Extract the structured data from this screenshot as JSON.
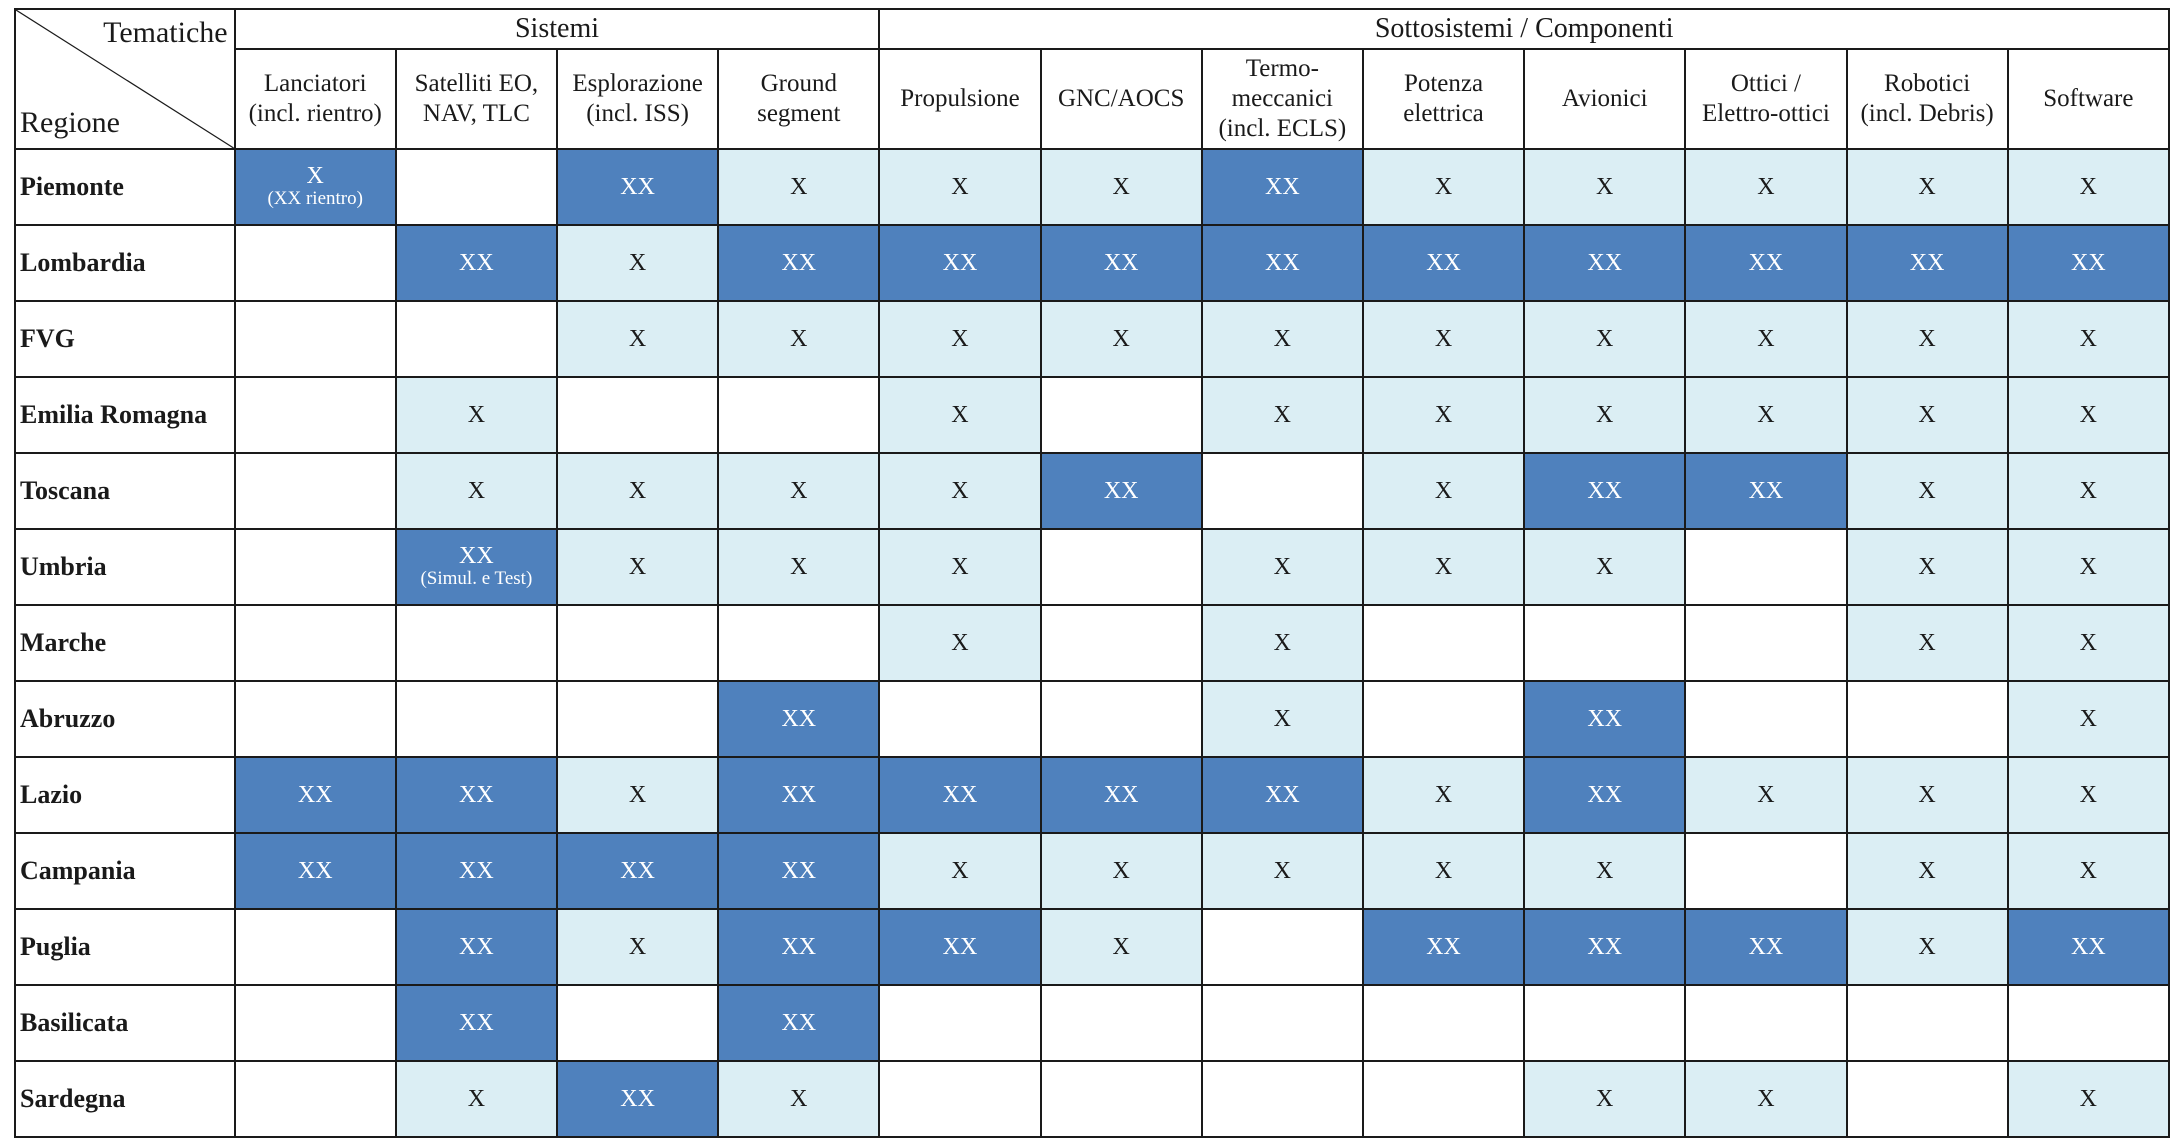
{
  "header": {
    "corner_top": "Tematiche",
    "corner_bottom": "Regione",
    "groups": [
      {
        "label": "Sistemi",
        "span": 4
      },
      {
        "label": "Sottosistemi / Componenti",
        "span": 8
      }
    ],
    "columns": [
      [
        "Lanciatori",
        "(incl. rientro)"
      ],
      [
        "Satelliti EO,",
        "NAV, TLC"
      ],
      [
        "Esplorazione",
        "(incl. ISS)"
      ],
      [
        "Ground",
        "segment"
      ],
      [
        "Propulsione"
      ],
      [
        "GNC/AOCS"
      ],
      [
        "Termo-",
        "meccanici",
        "(incl. ECLS)"
      ],
      [
        "Potenza",
        "elettrica"
      ],
      [
        "Avionici"
      ],
      [
        "Ottici /",
        "Elettro-ottici"
      ],
      [
        "Robotici",
        "(incl. Debris)"
      ],
      [
        "Software"
      ]
    ]
  },
  "colors": {
    "none": "#ffffff",
    "single_x": "#dbeef4",
    "double_x": "#4f81bd"
  },
  "rows": [
    {
      "region": "Piemonte",
      "cells": [
        {
          "text": "X",
          "note": "(XX rientro)",
          "level": 2
        },
        {
          "text": "",
          "level": 0
        },
        {
          "text": "XX",
          "level": 2
        },
        {
          "text": "X",
          "level": 1
        },
        {
          "text": "X",
          "level": 1
        },
        {
          "text": "X",
          "level": 1
        },
        {
          "text": "XX",
          "level": 2
        },
        {
          "text": "X",
          "level": 1
        },
        {
          "text": "X",
          "level": 1
        },
        {
          "text": "X",
          "level": 1
        },
        {
          "text": "X",
          "level": 1
        },
        {
          "text": "X",
          "level": 1
        }
      ]
    },
    {
      "region": "Lombardia",
      "cells": [
        {
          "text": "",
          "level": 0
        },
        {
          "text": "XX",
          "level": 2
        },
        {
          "text": "X",
          "level": 1
        },
        {
          "text": "XX",
          "level": 2
        },
        {
          "text": "XX",
          "level": 2
        },
        {
          "text": "XX",
          "level": 2
        },
        {
          "text": "XX",
          "level": 2
        },
        {
          "text": "XX",
          "level": 2
        },
        {
          "text": "XX",
          "level": 2
        },
        {
          "text": "XX",
          "level": 2
        },
        {
          "text": "XX",
          "level": 2
        },
        {
          "text": "XX",
          "level": 2
        }
      ]
    },
    {
      "region": "FVG",
      "cells": [
        {
          "text": "",
          "level": 0
        },
        {
          "text": "",
          "level": 0
        },
        {
          "text": "X",
          "level": 1
        },
        {
          "text": "X",
          "level": 1
        },
        {
          "text": "X",
          "level": 1
        },
        {
          "text": "X",
          "level": 1
        },
        {
          "text": "X",
          "level": 1
        },
        {
          "text": "X",
          "level": 1
        },
        {
          "text": "X",
          "level": 1
        },
        {
          "text": "X",
          "level": 1
        },
        {
          "text": "X",
          "level": 1
        },
        {
          "text": "X",
          "level": 1
        }
      ]
    },
    {
      "region": "Emilia Romagna",
      "cells": [
        {
          "text": "",
          "level": 0
        },
        {
          "text": "X",
          "level": 1
        },
        {
          "text": "",
          "level": 0
        },
        {
          "text": "",
          "level": 0
        },
        {
          "text": "X",
          "level": 1
        },
        {
          "text": "",
          "level": 0
        },
        {
          "text": "X",
          "level": 1
        },
        {
          "text": "X",
          "level": 1
        },
        {
          "text": "X",
          "level": 1
        },
        {
          "text": "X",
          "level": 1
        },
        {
          "text": "X",
          "level": 1
        },
        {
          "text": "X",
          "level": 1
        }
      ]
    },
    {
      "region": "Toscana",
      "cells": [
        {
          "text": "",
          "level": 0
        },
        {
          "text": "X",
          "level": 1
        },
        {
          "text": "X",
          "level": 1
        },
        {
          "text": "X",
          "level": 1
        },
        {
          "text": "X",
          "level": 1
        },
        {
          "text": "XX",
          "level": 2
        },
        {
          "text": "",
          "level": 0
        },
        {
          "text": "X",
          "level": 1
        },
        {
          "text": "XX",
          "level": 2
        },
        {
          "text": "XX",
          "level": 2
        },
        {
          "text": "X",
          "level": 1
        },
        {
          "text": "X",
          "level": 1
        }
      ]
    },
    {
      "region": "Umbria",
      "cells": [
        {
          "text": "",
          "level": 0
        },
        {
          "text": "XX",
          "note": "(Simul. e Test)",
          "level": 2
        },
        {
          "text": "X",
          "level": 1
        },
        {
          "text": "X",
          "level": 1
        },
        {
          "text": "X",
          "level": 1
        },
        {
          "text": "",
          "level": 0
        },
        {
          "text": "X",
          "level": 1
        },
        {
          "text": "X",
          "level": 1
        },
        {
          "text": "X",
          "level": 1
        },
        {
          "text": "",
          "level": 0
        },
        {
          "text": "X",
          "level": 1
        },
        {
          "text": "X",
          "level": 1
        }
      ]
    },
    {
      "region": "Marche",
      "cells": [
        {
          "text": "",
          "level": 0
        },
        {
          "text": "",
          "level": 0
        },
        {
          "text": "",
          "level": 0
        },
        {
          "text": "",
          "level": 0
        },
        {
          "text": "X",
          "level": 1
        },
        {
          "text": "",
          "level": 0
        },
        {
          "text": "X",
          "level": 1
        },
        {
          "text": "",
          "level": 0
        },
        {
          "text": "",
          "level": 0
        },
        {
          "text": "",
          "level": 0
        },
        {
          "text": "X",
          "level": 1
        },
        {
          "text": "X",
          "level": 1
        }
      ]
    },
    {
      "region": "Abruzzo",
      "cells": [
        {
          "text": "",
          "level": 0
        },
        {
          "text": "",
          "level": 0
        },
        {
          "text": "",
          "level": 0
        },
        {
          "text": "XX",
          "level": 2
        },
        {
          "text": "",
          "level": 0
        },
        {
          "text": "",
          "level": 0
        },
        {
          "text": "X",
          "level": 1
        },
        {
          "text": "",
          "level": 0
        },
        {
          "text": "XX",
          "level": 2
        },
        {
          "text": "",
          "level": 0
        },
        {
          "text": "",
          "level": 0
        },
        {
          "text": "X",
          "level": 1
        }
      ]
    },
    {
      "region": "Lazio",
      "cells": [
        {
          "text": "XX",
          "level": 2
        },
        {
          "text": "XX",
          "level": 2
        },
        {
          "text": "X",
          "level": 1
        },
        {
          "text": "XX",
          "level": 2
        },
        {
          "text": "XX",
          "level": 2
        },
        {
          "text": "XX",
          "level": 2
        },
        {
          "text": "XX",
          "level": 2
        },
        {
          "text": "X",
          "level": 1
        },
        {
          "text": "XX",
          "level": 2
        },
        {
          "text": "X",
          "level": 1
        },
        {
          "text": "X",
          "level": 1
        },
        {
          "text": "X",
          "level": 1
        }
      ]
    },
    {
      "region": "Campania",
      "cells": [
        {
          "text": "XX",
          "level": 2
        },
        {
          "text": "XX",
          "level": 2
        },
        {
          "text": "XX",
          "level": 2
        },
        {
          "text": "XX",
          "level": 2
        },
        {
          "text": "X",
          "level": 1
        },
        {
          "text": "X",
          "level": 1
        },
        {
          "text": "X",
          "level": 1
        },
        {
          "text": "X",
          "level": 1
        },
        {
          "text": "X",
          "level": 1
        },
        {
          "text": "",
          "level": 0
        },
        {
          "text": "X",
          "level": 1
        },
        {
          "text": "X",
          "level": 1
        }
      ]
    },
    {
      "region": "Puglia",
      "cells": [
        {
          "text": "",
          "level": 0
        },
        {
          "text": "XX",
          "level": 2
        },
        {
          "text": "X",
          "level": 1
        },
        {
          "text": "XX",
          "level": 2
        },
        {
          "text": "XX",
          "level": 2
        },
        {
          "text": "X",
          "level": 1
        },
        {
          "text": "",
          "level": 0
        },
        {
          "text": "XX",
          "level": 2
        },
        {
          "text": "XX",
          "level": 2
        },
        {
          "text": "XX",
          "level": 2
        },
        {
          "text": "X",
          "level": 1
        },
        {
          "text": "XX",
          "level": 2
        }
      ]
    },
    {
      "region": "Basilicata",
      "cells": [
        {
          "text": "",
          "level": 0
        },
        {
          "text": "XX",
          "level": 2
        },
        {
          "text": "",
          "level": 0
        },
        {
          "text": "XX",
          "level": 2
        },
        {
          "text": "",
          "level": 0
        },
        {
          "text": "",
          "level": 0
        },
        {
          "text": "",
          "level": 0
        },
        {
          "text": "",
          "level": 0
        },
        {
          "text": "",
          "level": 0
        },
        {
          "text": "",
          "level": 0
        },
        {
          "text": "",
          "level": 0
        },
        {
          "text": "",
          "level": 0
        }
      ]
    },
    {
      "region": "Sardegna",
      "cells": [
        {
          "text": "",
          "level": 0
        },
        {
          "text": "X",
          "level": 1
        },
        {
          "text": "XX",
          "level": 2
        },
        {
          "text": "X",
          "level": 1
        },
        {
          "text": "",
          "level": 0
        },
        {
          "text": "",
          "level": 0
        },
        {
          "text": "",
          "level": 0
        },
        {
          "text": "",
          "level": 0
        },
        {
          "text": "X",
          "level": 1
        },
        {
          "text": "X",
          "level": 1
        },
        {
          "text": "",
          "level": 0
        },
        {
          "text": "X",
          "level": 1
        }
      ]
    }
  ]
}
